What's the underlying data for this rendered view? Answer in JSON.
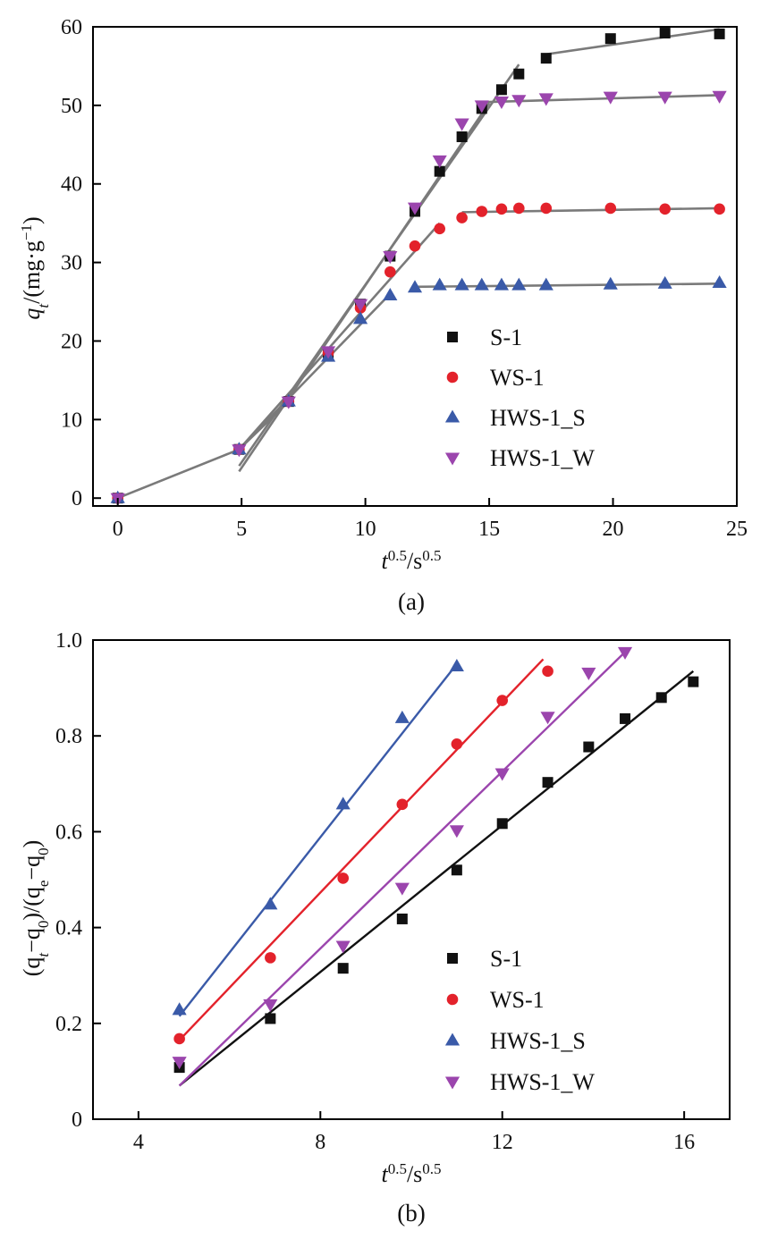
{
  "colors": {
    "s1": "#111111",
    "ws1": "#e3222b",
    "hws1s": "#3a5aa8",
    "hws1w": "#9b45ad",
    "fit_gray": "#7a7a7a",
    "axis": "#000000"
  },
  "chart_data": [
    {
      "type": "scatter",
      "panel_label": "(a)",
      "xlabel": {
        "main": "t",
        "sup1": "0.5",
        "mid": "/s",
        "sup2": "0.5"
      },
      "ylabel": {
        "main": "q",
        "sub": "t",
        "mid": "/(mg·g",
        "sup": "−1",
        "end": ")"
      },
      "xlim": [
        -1,
        25
      ],
      "ylim": [
        -1,
        60
      ],
      "xticks": [
        0,
        5,
        10,
        15,
        20,
        25
      ],
      "yticks": [
        0,
        10,
        20,
        30,
        40,
        50,
        60
      ],
      "xtick_labels": [
        "0",
        "5",
        "10",
        "15",
        "20",
        "25"
      ],
      "ytick_labels": [
        "0",
        "10",
        "20",
        "30",
        "40",
        "50",
        "60"
      ],
      "legend": [
        "S-1",
        "WS-1",
        "HWS-1_S",
        "HWS-1_W"
      ],
      "series": [
        {
          "name": "S-1",
          "key": "s1",
          "marker": "square",
          "points": [
            [
              0,
              0
            ],
            [
              4.9,
              6.2
            ],
            [
              6.9,
              12.3
            ],
            [
              8.5,
              18.5
            ],
            [
              9.8,
              24.7
            ],
            [
              11,
              30.8
            ],
            [
              12,
              36.5
            ],
            [
              13,
              41.6
            ],
            [
              13.9,
              46
            ],
            [
              14.7,
              49.6
            ],
            [
              15.5,
              52
            ],
            [
              16.2,
              54
            ],
            [
              17.3,
              56
            ],
            [
              19.9,
              58.5
            ],
            [
              22.1,
              59.2
            ],
            [
              24.3,
              59.1
            ]
          ]
        },
        {
          "name": "WS-1",
          "key": "ws1",
          "marker": "circle",
          "points": [
            [
              0,
              0
            ],
            [
              4.9,
              6.2
            ],
            [
              6.9,
              12.3
            ],
            [
              8.5,
              18.5
            ],
            [
              9.8,
              24.2
            ],
            [
              11,
              28.8
            ],
            [
              12,
              32.1
            ],
            [
              13,
              34.3
            ],
            [
              13.9,
              35.7
            ],
            [
              14.7,
              36.5
            ],
            [
              15.5,
              36.8
            ],
            [
              16.2,
              36.9
            ],
            [
              17.3,
              36.9
            ],
            [
              19.9,
              36.9
            ],
            [
              22.1,
              36.8
            ],
            [
              24.3,
              36.8
            ]
          ]
        },
        {
          "name": "HWS-1_S",
          "key": "hws1s",
          "marker": "triangle-up",
          "points": [
            [
              0,
              0
            ],
            [
              4.9,
              6.2
            ],
            [
              6.9,
              12.3
            ],
            [
              8.5,
              18
            ],
            [
              9.8,
              22.8
            ],
            [
              11,
              25.8
            ],
            [
              12,
              26.8
            ],
            [
              13,
              27.1
            ],
            [
              13.9,
              27.1
            ],
            [
              14.7,
              27.1
            ],
            [
              15.5,
              27.1
            ],
            [
              16.2,
              27.1
            ],
            [
              17.3,
              27.1
            ],
            [
              19.9,
              27.2
            ],
            [
              22.1,
              27.3
            ],
            [
              24.3,
              27.4
            ]
          ]
        },
        {
          "name": "HWS-1_W",
          "key": "hws1w",
          "marker": "triangle-down",
          "points": [
            [
              0,
              0
            ],
            [
              4.9,
              6.2
            ],
            [
              6.9,
              12.3
            ],
            [
              8.5,
              18.7
            ],
            [
              9.8,
              24.7
            ],
            [
              11,
              30.8
            ],
            [
              12,
              37
            ],
            [
              13,
              43
            ],
            [
              13.9,
              47.7
            ],
            [
              14.7,
              50
            ],
            [
              15.5,
              50.5
            ],
            [
              16.2,
              50.7
            ],
            [
              17.3,
              50.9
            ],
            [
              19.9,
              51.1
            ],
            [
              22.1,
              51.1
            ],
            [
              24.3,
              51.2
            ]
          ]
        }
      ],
      "fit_lines": [
        [
          [
            0,
            0
          ],
          [
            4.9,
            6.2
          ]
        ],
        [
          [
            4.9,
            6.2
          ],
          [
            6.9,
            12.3
          ]
        ],
        [
          [
            4.9,
            4.1
          ],
          [
            16.2,
            55.2
          ]
        ],
        [
          [
            4.9,
            3.4
          ],
          [
            15,
            50.3
          ]
        ],
        [
          [
            4.9,
            6.2
          ],
          [
            13,
            35
          ]
        ],
        [
          [
            4.9,
            6.2
          ],
          [
            11,
            26
          ]
        ],
        [
          [
            12,
            26.9
          ],
          [
            24.3,
            27.3
          ]
        ],
        [
          [
            13.9,
            36.4
          ],
          [
            24.3,
            36.9
          ]
        ],
        [
          [
            14.7,
            50.4
          ],
          [
            24.3,
            51.3
          ]
        ],
        [
          [
            17.3,
            56.5
          ],
          [
            24.3,
            59.7
          ]
        ]
      ]
    },
    {
      "type": "scatter",
      "panel_label": "(b)",
      "xlabel": {
        "main": "t",
        "sup1": "0.5",
        "mid": "/s",
        "sup2": "0.5"
      },
      "ylabel": {
        "p1": "(q",
        "s1": "t",
        "p2": "−q",
        "s2": "0",
        "p3": ")/(q",
        "s3": "e",
        "p4": "−q",
        "s4": "0",
        "p5": ")"
      },
      "xlim": [
        3,
        17
      ],
      "ylim": [
        0,
        1
      ],
      "xticks": [
        4,
        8,
        12,
        16
      ],
      "yticks": [
        0,
        0.2,
        0.4,
        0.6,
        0.8,
        1.0
      ],
      "xtick_labels": [
        "4",
        "8",
        "12",
        "16"
      ],
      "ytick_labels": [
        "0",
        "0.2",
        "0.4",
        "0.6",
        "0.8",
        "1.0"
      ],
      "legend": [
        "S-1",
        "WS-1",
        "HWS-1_S",
        "HWS-1_W"
      ],
      "series": [
        {
          "name": "S-1",
          "key": "s1",
          "marker": "square",
          "points": [
            [
              4.9,
              0.108
            ],
            [
              6.9,
              0.21
            ],
            [
              8.5,
              0.315
            ],
            [
              9.8,
              0.418
            ],
            [
              11,
              0.52
            ],
            [
              12,
              0.617
            ],
            [
              13,
              0.703
            ],
            [
              13.9,
              0.777
            ],
            [
              14.7,
              0.836
            ],
            [
              15.5,
              0.88
            ],
            [
              16.2,
              0.913
            ]
          ],
          "fit": [
            [
              4.9,
              0.07
            ],
            [
              16.2,
              0.935
            ]
          ]
        },
        {
          "name": "WS-1",
          "key": "ws1",
          "marker": "circle",
          "points": [
            [
              4.9,
              0.168
            ],
            [
              6.9,
              0.337
            ],
            [
              8.5,
              0.503
            ],
            [
              9.8,
              0.657
            ],
            [
              11,
              0.783
            ],
            [
              12,
              0.874
            ],
            [
              13,
              0.935
            ]
          ],
          "fit": [
            [
              4.9,
              0.165
            ],
            [
              12.9,
              0.96
            ]
          ]
        },
        {
          "name": "HWS-1_S",
          "key": "hws1s",
          "marker": "triangle-up",
          "points": [
            [
              4.9,
              0.228
            ],
            [
              6.9,
              0.448
            ],
            [
              8.5,
              0.657
            ],
            [
              9.8,
              0.837
            ],
            [
              11,
              0.945
            ]
          ],
          "fit": [
            [
              4.9,
              0.215
            ],
            [
              11,
              0.95
            ]
          ]
        },
        {
          "name": "HWS-1_W",
          "key": "hws1w",
          "marker": "triangle-down",
          "points": [
            [
              4.9,
              0.12
            ],
            [
              6.9,
              0.24
            ],
            [
              8.5,
              0.362
            ],
            [
              9.8,
              0.483
            ],
            [
              11,
              0.603
            ],
            [
              12,
              0.722
            ],
            [
              13,
              0.84
            ],
            [
              13.9,
              0.932
            ],
            [
              14.7,
              0.975
            ]
          ],
          "fit": [
            [
              4.9,
              0.07
            ],
            [
              14.7,
              0.975
            ]
          ]
        }
      ]
    }
  ]
}
